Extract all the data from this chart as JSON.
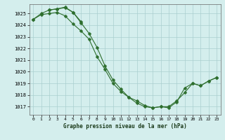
{
  "title": "Graphe pression niveau de la mer (hPa)",
  "bg_color": "#d4eeed",
  "grid_color": "#aacfcf",
  "line_color": "#2d6e2d",
  "xlim": [
    -0.5,
    23.5
  ],
  "ylim": [
    1016.3,
    1025.8
  ],
  "yticks": [
    1017,
    1018,
    1019,
    1020,
    1021,
    1022,
    1023,
    1024,
    1025
  ],
  "xticks": [
    0,
    1,
    2,
    3,
    4,
    5,
    6,
    7,
    8,
    9,
    10,
    11,
    12,
    13,
    14,
    15,
    16,
    17,
    18,
    19,
    20,
    21,
    22,
    23
  ],
  "line1_x": [
    0,
    1,
    2,
    3,
    4,
    5,
    6,
    7,
    8,
    9,
    10,
    11,
    12,
    13,
    14,
    15,
    16,
    17,
    18,
    19,
    20,
    21,
    22,
    23
  ],
  "line1_y": [
    1024.5,
    1024.9,
    1025.0,
    1025.1,
    1024.8,
    1024.1,
    1023.5,
    1022.8,
    1021.3,
    1020.2,
    1019.0,
    1018.3,
    1017.8,
    1017.3,
    1017.0,
    1016.9,
    1017.0,
    1016.9,
    1017.4,
    1018.6,
    1019.0,
    1018.8,
    1019.2,
    1019.5
  ],
  "line2_x": [
    0,
    1,
    2,
    3,
    4,
    5,
    6,
    7,
    8,
    9,
    10,
    11,
    12,
    13,
    14,
    15,
    16,
    17,
    18,
    19,
    20,
    21,
    22,
    23
  ],
  "line2_y": [
    1024.5,
    1025.0,
    1025.3,
    1025.4,
    1025.5,
    1025.1,
    1024.2,
    1023.3,
    1022.1,
    1020.5,
    1019.3,
    1018.5,
    1017.8,
    1017.5,
    1017.1,
    1016.9,
    1017.0,
    1017.0,
    1017.5,
    1018.2,
    1019.0,
    1018.8,
    1019.2,
    1019.5
  ],
  "line3_x": [
    2,
    3,
    4,
    5,
    6
  ],
  "line3_y": [
    1025.3,
    1025.4,
    1025.55,
    1025.1,
    1024.3
  ]
}
